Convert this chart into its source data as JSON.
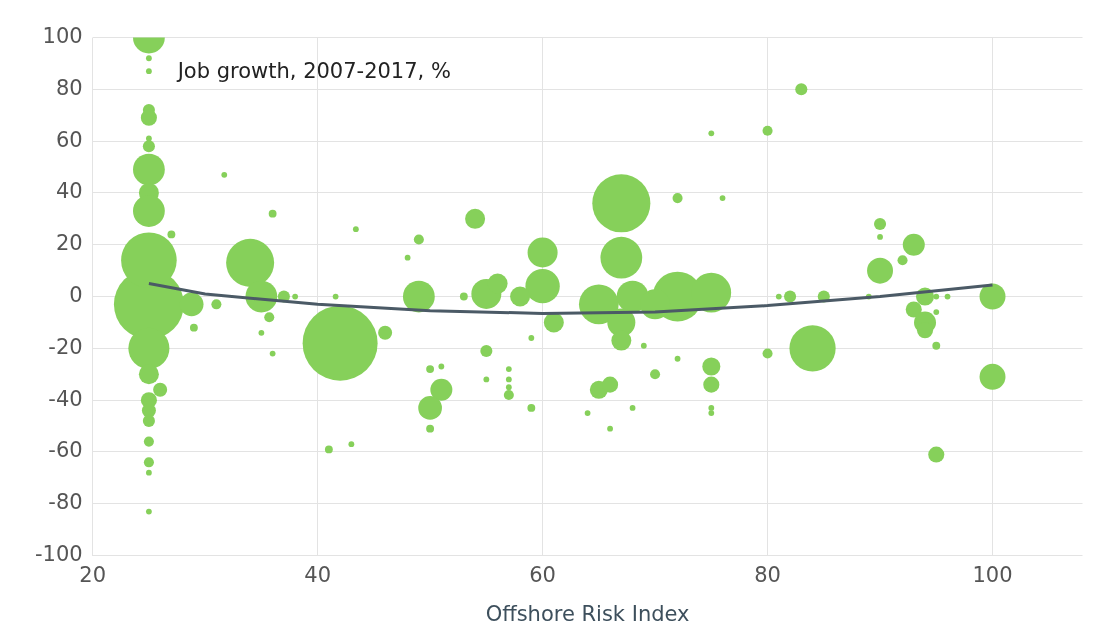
{
  "chart_data": {
    "type": "bubble",
    "ylabel": "Job growth, 2007-2017, %",
    "xlabel": "Offshore Risk Index",
    "xlim": [
      20,
      108
    ],
    "xticks": [
      20,
      40,
      60,
      80,
      100
    ],
    "ylim": [
      -100,
      100
    ],
    "yticks": [
      -100,
      -80,
      -60,
      -40,
      -20,
      0,
      20,
      40,
      60,
      80,
      100
    ],
    "grid": true,
    "series": [
      {
        "color": "#86d05a",
        "x": [
          25,
          25,
          25,
          25,
          25,
          25,
          25,
          25,
          25,
          25,
          25,
          25,
          25,
          25,
          26,
          25,
          25,
          25,
          25,
          25,
          25,
          25,
          27,
          28.8,
          29,
          31,
          31.7,
          34,
          35,
          36,
          37,
          38,
          35.7,
          35,
          36,
          41.6,
          42,
          43.4,
          46,
          41,
          43,
          48,
          49,
          49,
          50,
          51,
          51,
          50,
          50,
          54,
          53,
          55,
          56,
          55,
          55,
          57,
          57,
          57,
          57,
          59,
          59,
          60,
          60,
          58,
          61,
          65,
          67,
          67,
          68,
          67,
          67,
          72,
          75,
          70,
          72,
          75,
          76,
          80,
          83,
          65,
          66,
          64,
          66,
          68,
          69,
          70,
          72,
          75,
          75,
          75,
          75,
          80,
          84,
          82,
          85,
          81,
          89,
          90,
          90,
          90,
          92,
          93,
          93,
          94,
          95,
          96,
          94,
          94,
          95,
          95,
          95,
          100,
          100
        ],
        "values": [
          100,
          92,
          87,
          72,
          69,
          61,
          58,
          49,
          40,
          33,
          -3,
          14,
          -20,
          -30,
          -36,
          -40,
          -44,
          -48,
          -56,
          -64,
          -68,
          -83,
          24,
          -3,
          -12,
          -3,
          47,
          13,
          0,
          32,
          0,
          0,
          -8,
          -14,
          -22,
          0,
          -18,
          26,
          -14,
          -59,
          -57,
          15,
          22,
          0,
          -28,
          -27,
          -36,
          -43,
          -51,
          30,
          0,
          1,
          5,
          -21,
          -32,
          -28,
          -32,
          -35,
          -38,
          -43,
          -16,
          17,
          4,
          0,
          -10,
          -3,
          36,
          15,
          0,
          -10,
          -17,
          0,
          1.5,
          -3,
          38,
          63,
          38,
          64,
          80,
          -36,
          -34,
          -45,
          -51,
          -43,
          -19,
          -30,
          -24,
          -27,
          -34,
          -43,
          -45,
          -22,
          -20,
          0,
          0,
          0,
          0,
          28,
          23,
          10,
          14,
          20,
          -5,
          0,
          0,
          0,
          -10,
          -13,
          -19,
          -61,
          -6,
          0,
          -31
        ],
        "sizes": [
          0.18,
          0.006,
          0.006,
          0.026,
          0.046,
          0.006,
          0.026,
          0.18,
          0.071,
          0.18,
          0.87,
          0.55,
          0.3,
          0.071,
          0.035,
          0.046,
          0.035,
          0.026,
          0.018,
          0.018,
          0.006,
          0.006,
          0.011,
          0.1,
          0.011,
          0.018,
          0.006,
          0.41,
          0.18,
          0.011,
          0.026,
          0.006,
          0.018,
          0.006,
          0.006,
          0.006,
          1,
          0.006,
          0.035,
          0.011,
          0.006,
          0.006,
          0.018,
          0.18,
          0.011,
          0.006,
          0.086,
          0.1,
          0.011,
          0.071,
          0.011,
          0.16,
          0.071,
          0.026,
          0.006,
          0.006,
          0.006,
          0.006,
          0.018,
          0.011,
          0.006,
          0.16,
          0.21,
          0.071,
          0.071,
          0.28,
          0.6,
          0.31,
          0.18,
          0.14,
          0.071,
          0.44,
          0.28,
          0.16,
          0.018,
          0.006,
          0.006,
          0.018,
          0.026,
          0.058,
          0.046,
          0.006,
          0.006,
          0.006,
          0.006,
          0.018,
          0.006,
          0.058,
          0.046,
          0.006,
          0.006,
          0.018,
          0.38,
          0.026,
          0.026,
          0.006,
          0.006,
          0.026,
          0.006,
          0.12,
          0.018,
          0.086,
          0.046,
          0.058,
          0.006,
          0.006,
          0.086,
          0.046,
          0.011,
          0.046,
          0.006,
          0.12,
          0.12
        ]
      },
      {
        "type": "line",
        "color": "#4b5a66",
        "marker": "none",
        "x": [
          25,
          30,
          40,
          50,
          60,
          70,
          80,
          90,
          100
        ],
        "values": [
          5,
          1,
          -3,
          -5.5,
          -6.5,
          -6,
          -3.5,
          0,
          4.5
        ]
      }
    ]
  }
}
